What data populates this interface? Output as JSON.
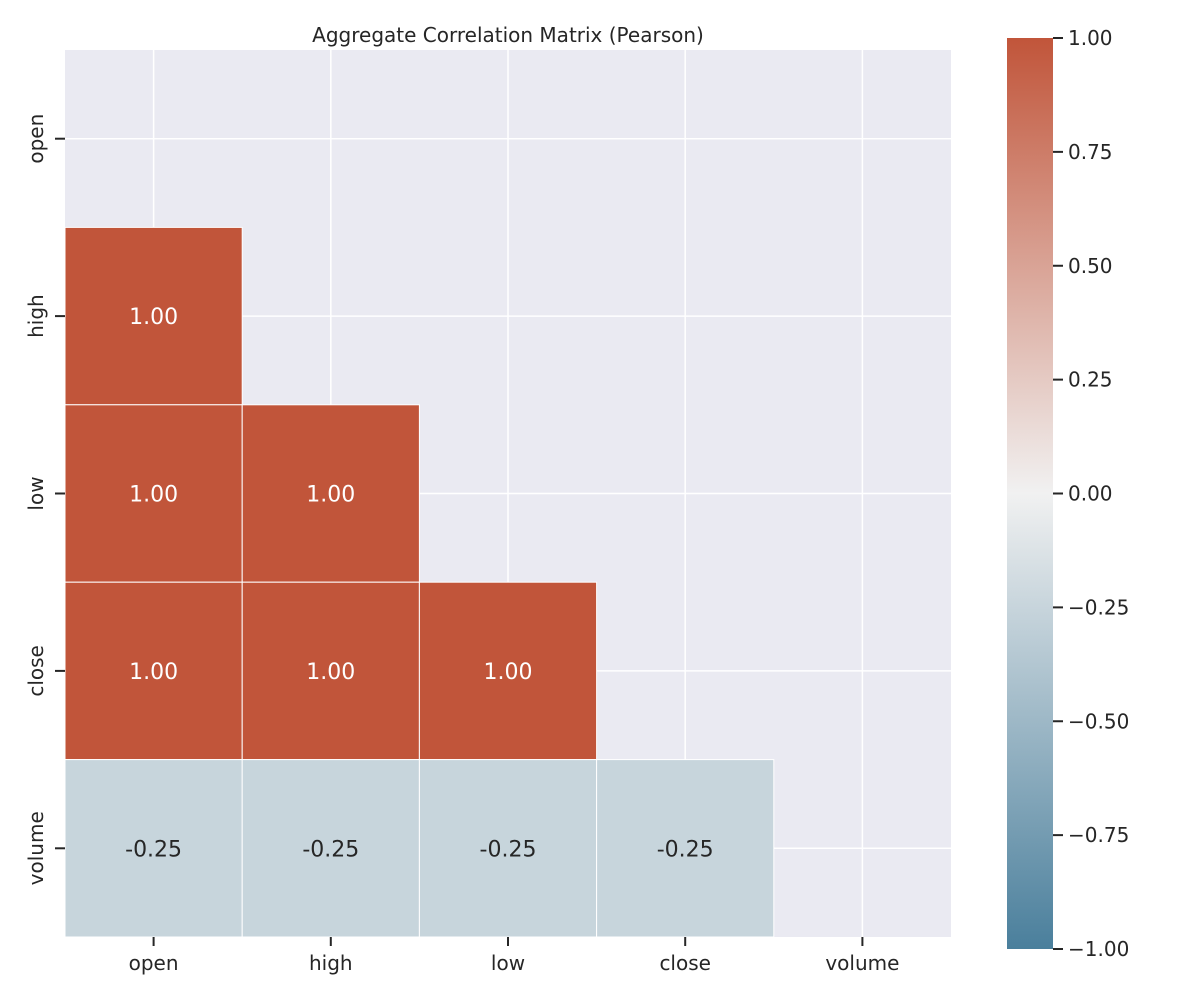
{
  "chart_data": {
    "type": "heatmap",
    "title": "Aggregate Correlation Matrix (Pearson)",
    "x_categories": [
      "open",
      "high",
      "low",
      "close",
      "volume"
    ],
    "y_categories": [
      "open",
      "high",
      "low",
      "close",
      "volume"
    ],
    "mask": "upper-triangle-including-diagonal",
    "cells": [
      {
        "row": "high",
        "col": "open",
        "value": 1.0,
        "label": "1.00"
      },
      {
        "row": "low",
        "col": "open",
        "value": 1.0,
        "label": "1.00"
      },
      {
        "row": "low",
        "col": "high",
        "value": 1.0,
        "label": "1.00"
      },
      {
        "row": "close",
        "col": "open",
        "value": 1.0,
        "label": "1.00"
      },
      {
        "row": "close",
        "col": "high",
        "value": 1.0,
        "label": "1.00"
      },
      {
        "row": "close",
        "col": "low",
        "value": 1.0,
        "label": "1.00"
      },
      {
        "row": "volume",
        "col": "open",
        "value": -0.25,
        "label": "-0.25"
      },
      {
        "row": "volume",
        "col": "high",
        "value": -0.25,
        "label": "-0.25"
      },
      {
        "row": "volume",
        "col": "low",
        "value": -0.25,
        "label": "-0.25"
      },
      {
        "row": "volume",
        "col": "close",
        "value": -0.25,
        "label": "-0.25"
      }
    ],
    "colorbar": {
      "range": [
        -1.0,
        1.0
      ],
      "ticks": [
        -1.0,
        -0.75,
        -0.5,
        -0.25,
        0.0,
        0.25,
        0.5,
        0.75,
        1.0
      ],
      "tick_labels": [
        "−1.00",
        "−0.75",
        "−0.50",
        "−0.25",
        "0.00",
        "0.25",
        "0.50",
        "0.75",
        "1.00"
      ],
      "colormap": "diverging-blue-red",
      "color_low": "#4a7f9c",
      "color_mid": "#f1f1f1",
      "color_high": "#c1553a"
    },
    "background_color": "#eaeaf2",
    "grid": true
  }
}
